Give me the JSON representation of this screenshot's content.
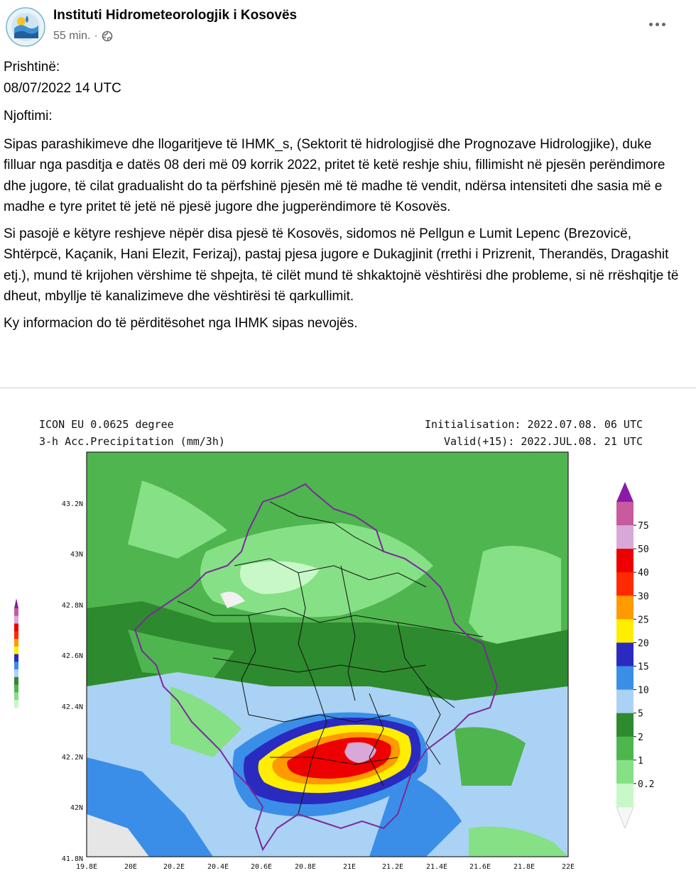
{
  "post": {
    "page_name": "Instituti Hidrometeorologjik i Kosovës",
    "timestamp": "55 min.",
    "separator": "·",
    "audience_icon": "globe-icon",
    "paragraphs": [
      "Prishtinë:",
      "08/07/2022 14 UTC",
      "Njoftimi:",
      "Sipas parashikimeve dhe llogaritjeve të IHMK_s, (Sektorit të hidrologjisë dhe Prognozave Hidrologjike),  duke filluar nga pasditja e datës 08 deri më 09 korrik 2022, pritet të ketë reshje shiu, fillimisht në pjesën perëndimore dhe jugore, të cilat gradualisht do ta përfshinë pjesën më të madhe të vendit, ndërsa intensiteti dhe sasia më e madhe e tyre pritet të jetë në pjesë jugore dhe jugperëndimore të Kosovës.",
      "Si pasojë e këtyre reshjeve nëpër disa pjesë të Kosovës, sidomos në Pellgun e Lumit Lepenc (Brezovicë, Shtërpcë, Kaçanik, Hani Elezit, Ferizaj),  pastaj pjesa jugore e Dukagjinit (rrethi i Prizrenit, Therandës, Dragashit etj.),  mund të krijohen vërshime të shpejta,  të cilët mund të shkaktojnë vështirësi dhe probleme, si në rrëshqitje të dheut, mbyllje të kanalizimeve dhe vështirësi të qarkullimit.",
      "Ky informacion do të përditësohet nga IHMK sipas nevojës."
    ]
  },
  "map": {
    "model": "ICON EU 0.0625 degree",
    "variable": "3-h Acc.Precipitation (mm/3h)",
    "init": "Initialisation: 2022.07.08. 06 UTC",
    "valid": "Valid(+15): 2022.JUL.08. 21 UTC",
    "lat_labels": [
      "43.2N",
      "43N",
      "42.8N",
      "42.6N",
      "42.4N",
      "42.2N",
      "42N",
      "41.8N"
    ],
    "lon_labels": [
      "19.8E",
      "20E",
      "20.2E",
      "20.4E",
      "20.6E",
      "20.8E",
      "21E",
      "21.2E",
      "21.4E",
      "21.6E",
      "21.8E",
      "22E"
    ],
    "legend_levels": [
      "75",
      "50",
      "40",
      "30",
      "25",
      "20",
      "15",
      "10",
      "5",
      "2",
      "1",
      "0.2"
    ],
    "legend_colors": [
      "#c85a9e",
      "#d8a8d8",
      "#ee0000",
      "#ff2a00",
      "#ff9a00",
      "#ffee00",
      "#2a2ac0",
      "#3a8ee8",
      "#aad2f5",
      "#2e8a2e",
      "#4fb54f",
      "#86e086",
      "#c8f8c8"
    ],
    "colors": {
      "kosovo_border": "#7a2a9a",
      "municipal_border": "#111111"
    }
  }
}
